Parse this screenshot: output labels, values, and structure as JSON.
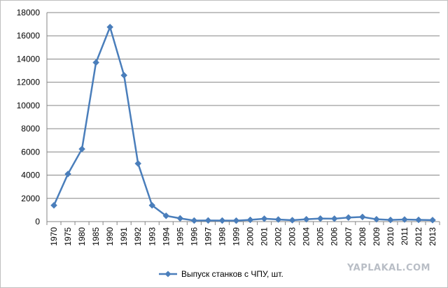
{
  "chart_data": {
    "type": "line",
    "categories": [
      "1970",
      "1975",
      "1980",
      "1985",
      "1990",
      "1991",
      "1992",
      "1993",
      "1994",
      "1995",
      "1996",
      "1997",
      "1998",
      "1999",
      "2000",
      "2001",
      "2002",
      "2003",
      "2004",
      "2005",
      "2006",
      "2007",
      "2008",
      "2009",
      "2010",
      "2011",
      "2012",
      "2013"
    ],
    "series": [
      {
        "name": "Выпуск станков с ЧПУ, шт.",
        "color": "#4a7ebb",
        "values": [
          1400,
          4100,
          6250,
          13700,
          16750,
          12600,
          5000,
          1400,
          500,
          280,
          90,
          100,
          90,
          80,
          150,
          250,
          180,
          120,
          200,
          260,
          250,
          350,
          400,
          200,
          140,
          180,
          150,
          130
        ]
      }
    ],
    "ylim": [
      0,
      18000
    ],
    "yticks": [
      0,
      2000,
      4000,
      6000,
      8000,
      10000,
      12000,
      14000,
      16000,
      18000
    ],
    "grid": true,
    "legend_position": "bottom",
    "marker": "diamond"
  },
  "watermark": "YAPLAKAL.COM"
}
